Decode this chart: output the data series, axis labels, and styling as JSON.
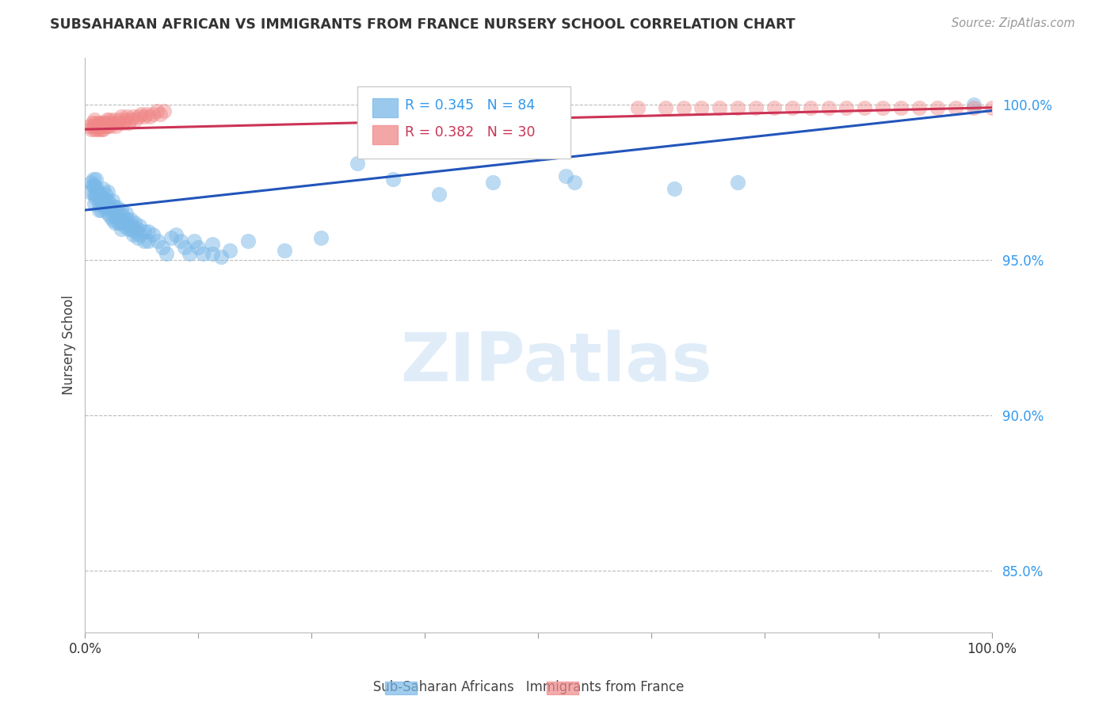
{
  "title": "SUBSAHARAN AFRICAN VS IMMIGRANTS FROM FRANCE NURSERY SCHOOL CORRELATION CHART",
  "source": "Source: ZipAtlas.com",
  "ylabel": "Nursery School",
  "ytick_labels": [
    "100.0%",
    "95.0%",
    "90.0%",
    "85.0%"
  ],
  "ytick_values": [
    1.0,
    0.95,
    0.9,
    0.85
  ],
  "xlim": [
    0.0,
    1.0
  ],
  "ylim": [
    0.83,
    1.015
  ],
  "blue_color": "#7ab8e8",
  "pink_color": "#f08888",
  "line_blue_color": "#2255bb",
  "line_pink_color": "#cc3355",
  "blue_scatter": [
    [
      0.005,
      0.972
    ],
    [
      0.007,
      0.975
    ],
    [
      0.008,
      0.974
    ],
    [
      0.009,
      0.976
    ],
    [
      0.01,
      0.971
    ],
    [
      0.01,
      0.968
    ],
    [
      0.01,
      0.974
    ],
    [
      0.011,
      0.97
    ],
    [
      0.012,
      0.976
    ],
    [
      0.012,
      0.971
    ],
    [
      0.013,
      0.973
    ],
    [
      0.014,
      0.972
    ],
    [
      0.015,
      0.968
    ],
    [
      0.015,
      0.966
    ],
    [
      0.015,
      0.971
    ],
    [
      0.016,
      0.97
    ],
    [
      0.017,
      0.969
    ],
    [
      0.018,
      0.97
    ],
    [
      0.018,
      0.966
    ],
    [
      0.02,
      0.973
    ],
    [
      0.02,
      0.97
    ],
    [
      0.02,
      0.967
    ],
    [
      0.022,
      0.971
    ],
    [
      0.022,
      0.968
    ],
    [
      0.023,
      0.967
    ],
    [
      0.025,
      0.972
    ],
    [
      0.025,
      0.969
    ],
    [
      0.025,
      0.965
    ],
    [
      0.027,
      0.968
    ],
    [
      0.028,
      0.967
    ],
    [
      0.028,
      0.964
    ],
    [
      0.03,
      0.969
    ],
    [
      0.03,
      0.966
    ],
    [
      0.03,
      0.963
    ],
    [
      0.032,
      0.967
    ],
    [
      0.033,
      0.964
    ],
    [
      0.033,
      0.962
    ],
    [
      0.035,
      0.967
    ],
    [
      0.035,
      0.964
    ],
    [
      0.036,
      0.962
    ],
    [
      0.038,
      0.965
    ],
    [
      0.039,
      0.962
    ],
    [
      0.04,
      0.966
    ],
    [
      0.04,
      0.963
    ],
    [
      0.04,
      0.96
    ],
    [
      0.042,
      0.964
    ],
    [
      0.043,
      0.961
    ],
    [
      0.045,
      0.965
    ],
    [
      0.045,
      0.962
    ],
    [
      0.047,
      0.963
    ],
    [
      0.048,
      0.96
    ],
    [
      0.05,
      0.963
    ],
    [
      0.05,
      0.96
    ],
    [
      0.052,
      0.961
    ],
    [
      0.053,
      0.958
    ],
    [
      0.055,
      0.962
    ],
    [
      0.055,
      0.959
    ],
    [
      0.057,
      0.96
    ],
    [
      0.058,
      0.957
    ],
    [
      0.06,
      0.961
    ],
    [
      0.06,
      0.958
    ],
    [
      0.065,
      0.959
    ],
    [
      0.065,
      0.956
    ],
    [
      0.07,
      0.959
    ],
    [
      0.07,
      0.956
    ],
    [
      0.075,
      0.958
    ],
    [
      0.08,
      0.956
    ],
    [
      0.085,
      0.954
    ],
    [
      0.09,
      0.952
    ],
    [
      0.095,
      0.957
    ],
    [
      0.1,
      0.958
    ],
    [
      0.105,
      0.956
    ],
    [
      0.11,
      0.954
    ],
    [
      0.115,
      0.952
    ],
    [
      0.12,
      0.956
    ],
    [
      0.125,
      0.954
    ],
    [
      0.13,
      0.952
    ],
    [
      0.14,
      0.955
    ],
    [
      0.14,
      0.952
    ],
    [
      0.15,
      0.951
    ],
    [
      0.16,
      0.953
    ],
    [
      0.18,
      0.956
    ],
    [
      0.22,
      0.953
    ],
    [
      0.26,
      0.957
    ],
    [
      0.3,
      0.981
    ],
    [
      0.34,
      0.976
    ],
    [
      0.39,
      0.971
    ],
    [
      0.45,
      0.975
    ],
    [
      0.53,
      0.977
    ],
    [
      0.54,
      0.975
    ],
    [
      0.65,
      0.973
    ],
    [
      0.72,
      0.975
    ],
    [
      0.98,
      1.0
    ]
  ],
  "pink_scatter": [
    [
      0.005,
      0.993
    ],
    [
      0.007,
      0.992
    ],
    [
      0.008,
      0.994
    ],
    [
      0.009,
      0.993
    ],
    [
      0.01,
      0.992
    ],
    [
      0.01,
      0.995
    ],
    [
      0.011,
      0.994
    ],
    [
      0.012,
      0.993
    ],
    [
      0.013,
      0.992
    ],
    [
      0.014,
      0.993
    ],
    [
      0.015,
      0.994
    ],
    [
      0.015,
      0.992
    ],
    [
      0.016,
      0.993
    ],
    [
      0.017,
      0.994
    ],
    [
      0.018,
      0.992
    ],
    [
      0.019,
      0.993
    ],
    [
      0.02,
      0.994
    ],
    [
      0.02,
      0.992
    ],
    [
      0.022,
      0.994
    ],
    [
      0.023,
      0.993
    ],
    [
      0.024,
      0.995
    ],
    [
      0.025,
      0.993
    ],
    [
      0.026,
      0.994
    ],
    [
      0.027,
      0.995
    ],
    [
      0.028,
      0.993
    ],
    [
      0.03,
      0.994
    ],
    [
      0.032,
      0.995
    ],
    [
      0.034,
      0.993
    ],
    [
      0.036,
      0.994
    ],
    [
      0.038,
      0.995
    ],
    [
      0.04,
      0.996
    ],
    [
      0.042,
      0.994
    ],
    [
      0.044,
      0.995
    ],
    [
      0.046,
      0.996
    ],
    [
      0.048,
      0.994
    ],
    [
      0.05,
      0.995
    ],
    [
      0.053,
      0.996
    ],
    [
      0.056,
      0.995
    ],
    [
      0.059,
      0.996
    ],
    [
      0.062,
      0.997
    ],
    [
      0.065,
      0.996
    ],
    [
      0.068,
      0.997
    ],
    [
      0.071,
      0.996
    ],
    [
      0.075,
      0.997
    ],
    [
      0.079,
      0.998
    ],
    [
      0.083,
      0.997
    ],
    [
      0.087,
      0.998
    ],
    [
      0.31,
      0.999
    ],
    [
      0.33,
      0.999
    ],
    [
      0.36,
      0.999
    ],
    [
      0.38,
      0.999
    ],
    [
      0.4,
      0.999
    ],
    [
      0.42,
      0.999
    ],
    [
      0.44,
      0.999
    ],
    [
      0.46,
      0.999
    ],
    [
      0.48,
      0.999
    ],
    [
      0.5,
      0.999
    ],
    [
      0.61,
      0.999
    ],
    [
      0.64,
      0.999
    ],
    [
      0.66,
      0.999
    ],
    [
      0.68,
      0.999
    ],
    [
      0.7,
      0.999
    ],
    [
      0.72,
      0.999
    ],
    [
      0.74,
      0.999
    ],
    [
      0.76,
      0.999
    ],
    [
      0.78,
      0.999
    ],
    [
      0.8,
      0.999
    ],
    [
      0.82,
      0.999
    ],
    [
      0.84,
      0.999
    ],
    [
      0.86,
      0.999
    ],
    [
      0.88,
      0.999
    ],
    [
      0.9,
      0.999
    ],
    [
      0.92,
      0.999
    ],
    [
      0.94,
      0.999
    ],
    [
      0.96,
      0.999
    ],
    [
      0.98,
      0.999
    ],
    [
      1.0,
      0.999
    ]
  ],
  "blue_line_x": [
    0.0,
    1.0
  ],
  "blue_line_y": [
    0.966,
    0.998
  ],
  "pink_line_x": [
    0.0,
    1.0
  ],
  "pink_line_y": [
    0.992,
    0.999
  ],
  "watermark": "ZIPatlas",
  "grid_color": "#bbbbbb",
  "background_color": "#ffffff"
}
